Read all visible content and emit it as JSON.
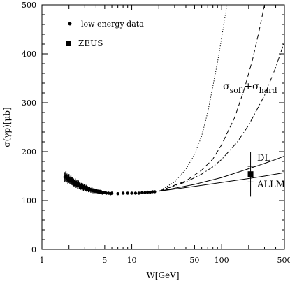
{
  "chart_data": {
    "type": "scatter",
    "xscale": "log",
    "xlim": [
      1,
      500
    ],
    "ylim": [
      0,
      500
    ],
    "xlabel": "W[GeV]",
    "ylabel": "σ(γp)[μb]",
    "xticks": [
      1,
      2,
      5,
      10,
      20,
      50,
      100,
      200,
      500
    ],
    "xtick_labels": [
      "1",
      "",
      "5",
      "10",
      "",
      "50",
      "100",
      "",
      "500"
    ],
    "yticks": [
      0,
      100,
      200,
      300,
      400,
      500
    ],
    "ytick_labels": [
      "0",
      "100",
      "200",
      "300",
      "400",
      "500"
    ],
    "grid": false,
    "legend": {
      "placement": "top-left",
      "entries": [
        {
          "marker": "dot",
          "label": "low energy data"
        },
        {
          "marker": "square",
          "label": "ZEUS"
        }
      ]
    },
    "annotations": {
      "hard_soft": {
        "main": "σ",
        "sub1": "soft",
        "plus": "+σ",
        "sub2": "hard"
      },
      "dl": "DL",
      "allm": "ALLM"
    },
    "series": [
      {
        "name": "low energy data",
        "marker": "dot",
        "x": [
          1.8,
          1.85,
          1.9,
          1.95,
          2.0,
          2.05,
          2.1,
          2.15,
          2.2,
          2.25,
          2.3,
          2.35,
          2.4,
          2.45,
          2.5,
          2.55,
          2.6,
          2.65,
          2.7,
          2.75,
          2.8,
          2.85,
          2.9,
          2.95,
          3.0,
          3.05,
          3.1,
          3.15,
          3.2,
          3.3,
          3.4,
          3.5,
          3.6,
          3.7,
          3.8,
          3.9,
          4.0,
          4.1,
          4.2,
          4.3,
          4.4,
          4.5,
          4.6,
          4.7,
          4.8,
          4.9,
          5.0,
          5.2,
          5.5,
          5.8,
          6.0,
          7.0,
          8.0,
          9.0,
          10.0,
          11.0,
          12.0,
          13.0,
          14.0,
          15.0,
          16.0,
          17.0,
          18.0
        ],
        "y": [
          148,
          150,
          146,
          143,
          145,
          141,
          143,
          140,
          139,
          137,
          136,
          138,
          133,
          135,
          131,
          134,
          130,
          132,
          128,
          130,
          127,
          129,
          125,
          128,
          126,
          124,
          127,
          123,
          125,
          122,
          123,
          121,
          122,
          120,
          121,
          119,
          120,
          119,
          118,
          119,
          117,
          118,
          117,
          116,
          117,
          116,
          116,
          115,
          115,
          114,
          115,
          114,
          115,
          115,
          115,
          115,
          115,
          116,
          116,
          117,
          117,
          118,
          118
        ],
        "errors": [
          10,
          10,
          9,
          9,
          9,
          8,
          8,
          8,
          8,
          8,
          7,
          7,
          7,
          7,
          7,
          7,
          6,
          6,
          6,
          6,
          6,
          6,
          6,
          6,
          5,
          5,
          5,
          5,
          5,
          5,
          5,
          5,
          5,
          5,
          4,
          4,
          4,
          4,
          4,
          4,
          4,
          4,
          4,
          4,
          3,
          3,
          3,
          3,
          3,
          3,
          3,
          2,
          2,
          2,
          2,
          2,
          2,
          2,
          2,
          2,
          2,
          2,
          2
        ]
      },
      {
        "name": "ZEUS",
        "marker": "square",
        "x": [
          210
        ],
        "y": [
          154
        ],
        "errors": [
          16
        ],
        "errors_sys": [
          46
        ]
      }
    ],
    "curves": [
      {
        "style": "dotted",
        "x": [
          20,
          30,
          40,
          50,
          60,
          70,
          80,
          90,
          100,
          110,
          115
        ],
        "y": [
          119,
          138,
          164,
          194,
          232,
          280,
          334,
          383,
          432,
          480,
          500
        ]
      },
      {
        "style": "dashed",
        "x": [
          20,
          40,
          60,
          80,
          100,
          140,
          180,
          220,
          260,
          300
        ],
        "y": [
          119,
          140,
          162,
          185,
          214,
          270,
          330,
          387,
          445,
          500
        ]
      },
      {
        "style": "dash-dot",
        "x": [
          20,
          40,
          60,
          80,
          100,
          150,
          200,
          300,
          400,
          500
        ],
        "y": [
          119,
          138,
          154,
          169,
          184,
          220,
          254,
          315,
          372,
          425
        ]
      },
      {
        "style": "solid",
        "x": [
          20,
          50,
          100,
          200,
          300,
          400,
          500
        ],
        "y": [
          119,
          133,
          147,
          165,
          176,
          184,
          191
        ]
      },
      {
        "style": "solid",
        "x": [
          20,
          50,
          100,
          200,
          300,
          400,
          500
        ],
        "y": [
          119,
          129,
          137,
          145,
          150,
          154,
          157
        ]
      }
    ]
  }
}
